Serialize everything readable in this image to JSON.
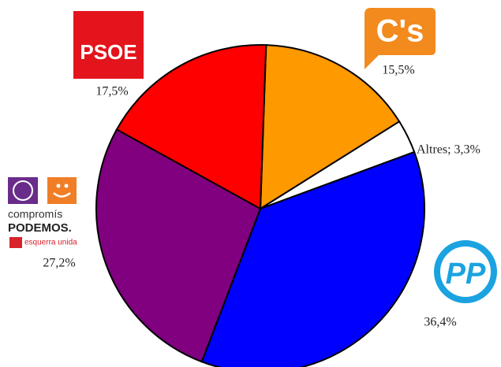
{
  "chart_data": {
    "type": "pie",
    "categories": [
      "C's",
      "Altres",
      "PP",
      "PODEMOS.",
      "PSOE"
    ],
    "values": [
      15.5,
      3.3,
      36.4,
      27.2,
      17.5
    ],
    "value_labels": [
      "15,5%",
      "Altres; 3,3%",
      "36,4%",
      "27,2%",
      "17,5%"
    ],
    "colors": [
      "#ff9900",
      "#ffffff",
      "#0000ff",
      "#800080",
      "#ff0000"
    ],
    "logo_subtexts": [
      "compromís",
      "esquerra unida"
    ]
  }
}
